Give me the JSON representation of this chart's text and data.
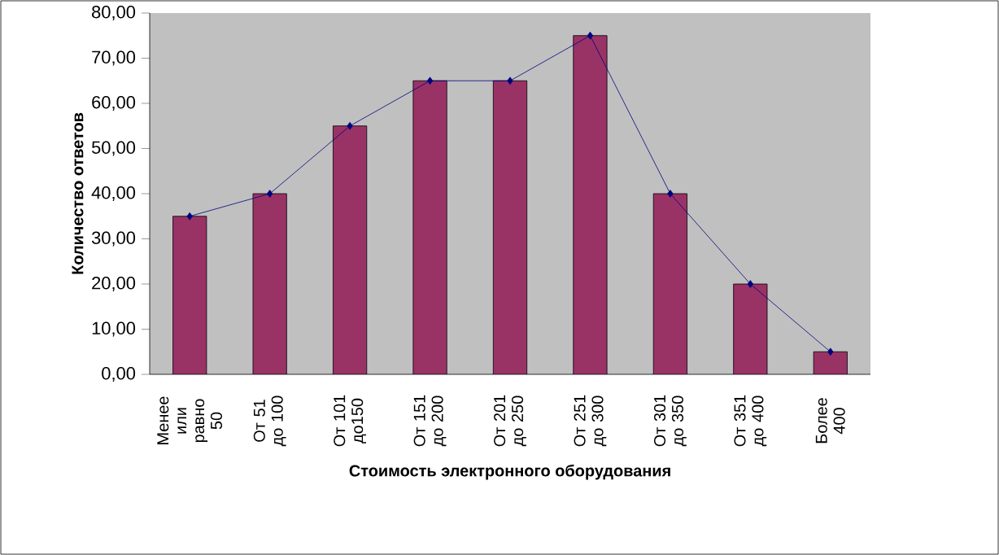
{
  "chart_data": {
    "type": "bar",
    "xlabel": "Стоимость электронного оборудования",
    "ylabel": "Количество ответов",
    "categories": [
      "Менее или равно 50",
      "От 51 до 100",
      "От 101 до150",
      "От 151 до 200",
      "От 201 до 250",
      "От 251 до 300",
      "От 301 до 350",
      "От 351 до 400",
      "Более 400"
    ],
    "series": [
      {
        "color": "#993366",
        "values": [
          35,
          40,
          55,
          65,
          65,
          75,
          40,
          20,
          5
        ]
      },
      {
        "type": "line",
        "color": "#000080",
        "marker": "diamond",
        "values": [
          35,
          40,
          55,
          65,
          65,
          75,
          40,
          20,
          5
        ]
      }
    ],
    "ylim": [
      0,
      80
    ],
    "yticks": [
      {
        "value": 0,
        "label": "0,00"
      },
      {
        "value": 10,
        "label": "10,00"
      },
      {
        "value": 20,
        "label": "20,00"
      },
      {
        "value": 30,
        "label": "30,00"
      },
      {
        "value": 40,
        "label": "40,00"
      },
      {
        "value": 50,
        "label": "50,00"
      },
      {
        "value": 60,
        "label": "60,00"
      },
      {
        "value": 70,
        "label": "70,00"
      },
      {
        "value": 80,
        "label": "80,00"
      }
    ],
    "grid": false
  }
}
